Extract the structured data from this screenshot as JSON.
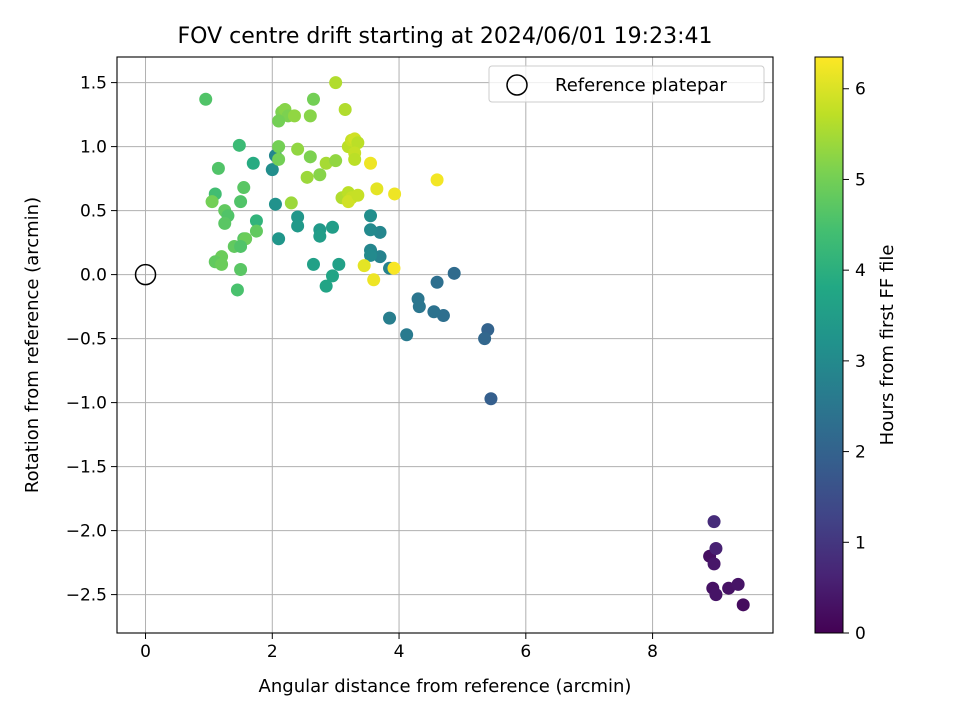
{
  "chart_data": {
    "type": "scatter",
    "title": "FOV centre drift starting at 2024/06/01 19:23:41",
    "xlabel": "Angular distance from reference (arcmin)",
    "ylabel": "Rotation from reference (arcmin)",
    "xlim": [
      -0.45,
      9.9
    ],
    "ylim": [
      -2.8,
      1.7
    ],
    "xticks": [
      0,
      2,
      4,
      6,
      8
    ],
    "xtick_labels": [
      "0",
      "2",
      "4",
      "6",
      "8"
    ],
    "yticks": [
      -2.5,
      -2.0,
      -1.5,
      -1.0,
      -0.5,
      0.0,
      0.5,
      1.0,
      1.5
    ],
    "ytick_labels": [
      "−2.5",
      "−2.0",
      "−1.5",
      "−1.0",
      "−0.5",
      "0.0",
      "0.5",
      "1.0",
      "1.5"
    ],
    "grid": true,
    "legend": {
      "placement": "top-right",
      "entries": [
        "Reference platepar"
      ]
    },
    "reference_point": {
      "x": 0.0,
      "y": 0.0
    },
    "colorbar": {
      "label": "Hours from first FF file",
      "colormap": "viridis",
      "range": [
        0,
        6.35
      ],
      "ticks": [
        0,
        1,
        2,
        3,
        4,
        5,
        6
      ],
      "tick_labels": [
        "0",
        "1",
        "2",
        "3",
        "4",
        "5",
        "6"
      ]
    },
    "points": [
      {
        "x": 8.9,
        "y": -2.2,
        "c": 0.25
      },
      {
        "x": 8.95,
        "y": -2.45,
        "c": 0.3
      },
      {
        "x": 9.0,
        "y": -2.5,
        "c": 0.35
      },
      {
        "x": 8.97,
        "y": -2.26,
        "c": 0.4
      },
      {
        "x": 9.2,
        "y": -2.45,
        "c": 0.3
      },
      {
        "x": 9.35,
        "y": -2.42,
        "c": 0.35
      },
      {
        "x": 9.43,
        "y": -2.58,
        "c": 0.2
      },
      {
        "x": 9.0,
        "y": -2.14,
        "c": 0.6
      },
      {
        "x": 8.97,
        "y": -1.93,
        "c": 0.8
      },
      {
        "x": 5.45,
        "y": -0.97,
        "c": 1.9
      },
      {
        "x": 5.4,
        "y": -0.43,
        "c": 2.0
      },
      {
        "x": 5.35,
        "y": -0.5,
        "c": 2.1
      },
      {
        "x": 4.87,
        "y": 0.01,
        "c": 2.2
      },
      {
        "x": 4.7,
        "y": -0.32,
        "c": 2.3
      },
      {
        "x": 4.6,
        "y": -0.06,
        "c": 2.3
      },
      {
        "x": 4.55,
        "y": -0.29,
        "c": 2.4
      },
      {
        "x": 4.3,
        "y": -0.19,
        "c": 2.5
      },
      {
        "x": 4.32,
        "y": -0.25,
        "c": 2.5
      },
      {
        "x": 4.12,
        "y": -0.47,
        "c": 2.6
      },
      {
        "x": 3.85,
        "y": -0.34,
        "c": 2.7
      },
      {
        "x": 3.85,
        "y": 0.05,
        "c": 2.8
      },
      {
        "x": 3.7,
        "y": 0.14,
        "c": 2.8
      },
      {
        "x": 3.7,
        "y": 0.33,
        "c": 2.9
      },
      {
        "x": 3.55,
        "y": 0.19,
        "c": 2.9
      },
      {
        "x": 3.55,
        "y": 0.15,
        "c": 3.0
      },
      {
        "x": 3.55,
        "y": 0.35,
        "c": 3.0
      },
      {
        "x": 3.55,
        "y": 0.46,
        "c": 3.1
      },
      {
        "x": 2.05,
        "y": 0.93,
        "c": 2.9
      },
      {
        "x": 2.0,
        "y": 0.82,
        "c": 3.1
      },
      {
        "x": 2.05,
        "y": 0.55,
        "c": 3.2
      },
      {
        "x": 2.1,
        "y": 0.28,
        "c": 3.3
      },
      {
        "x": 2.4,
        "y": 0.45,
        "c": 3.3
      },
      {
        "x": 2.4,
        "y": 0.38,
        "c": 3.4
      },
      {
        "x": 2.75,
        "y": 0.35,
        "c": 3.4
      },
      {
        "x": 2.75,
        "y": 0.3,
        "c": 3.5
      },
      {
        "x": 2.95,
        "y": 0.37,
        "c": 3.5
      },
      {
        "x": 2.65,
        "y": 0.08,
        "c": 3.6
      },
      {
        "x": 3.05,
        "y": 0.08,
        "c": 3.6
      },
      {
        "x": 2.95,
        "y": -0.01,
        "c": 3.7
      },
      {
        "x": 2.85,
        "y": -0.09,
        "c": 3.7
      },
      {
        "x": 1.7,
        "y": 0.87,
        "c": 3.9
      },
      {
        "x": 1.75,
        "y": 0.42,
        "c": 4.1
      },
      {
        "x": 1.48,
        "y": 1.01,
        "c": 4.3
      },
      {
        "x": 1.1,
        "y": 0.63,
        "c": 4.4
      },
      {
        "x": 0.95,
        "y": 1.37,
        "c": 4.6
      },
      {
        "x": 1.15,
        "y": 0.83,
        "c": 4.6
      },
      {
        "x": 1.55,
        "y": 0.68,
        "c": 4.7
      },
      {
        "x": 1.5,
        "y": 0.57,
        "c": 4.6
      },
      {
        "x": 1.25,
        "y": 0.5,
        "c": 4.8
      },
      {
        "x": 1.3,
        "y": 0.46,
        "c": 4.6
      },
      {
        "x": 1.25,
        "y": 0.4,
        "c": 4.7
      },
      {
        "x": 1.75,
        "y": 0.34,
        "c": 4.8
      },
      {
        "x": 1.55,
        "y": 0.28,
        "c": 4.7
      },
      {
        "x": 1.58,
        "y": 0.28,
        "c": 4.9
      },
      {
        "x": 1.4,
        "y": 0.22,
        "c": 4.8
      },
      {
        "x": 1.5,
        "y": 0.22,
        "c": 4.6
      },
      {
        "x": 1.2,
        "y": 0.14,
        "c": 4.9
      },
      {
        "x": 1.1,
        "y": 0.1,
        "c": 4.8
      },
      {
        "x": 1.2,
        "y": 0.08,
        "c": 4.9
      },
      {
        "x": 1.5,
        "y": 0.04,
        "c": 4.7
      },
      {
        "x": 1.45,
        "y": -0.12,
        "c": 4.5
      },
      {
        "x": 1.05,
        "y": 0.57,
        "c": 5.0
      },
      {
        "x": 2.1,
        "y": 1.0,
        "c": 5.0
      },
      {
        "x": 2.1,
        "y": 0.9,
        "c": 5.0
      },
      {
        "x": 2.15,
        "y": 1.27,
        "c": 5.1
      },
      {
        "x": 2.2,
        "y": 1.29,
        "c": 5.2
      },
      {
        "x": 2.25,
        "y": 1.24,
        "c": 5.1
      },
      {
        "x": 2.1,
        "y": 1.2,
        "c": 5.0
      },
      {
        "x": 2.35,
        "y": 1.24,
        "c": 5.3
      },
      {
        "x": 2.6,
        "y": 1.24,
        "c": 5.2
      },
      {
        "x": 2.65,
        "y": 1.37,
        "c": 5.0
      },
      {
        "x": 2.4,
        "y": 0.98,
        "c": 5.3
      },
      {
        "x": 2.6,
        "y": 0.92,
        "c": 5.1
      },
      {
        "x": 2.55,
        "y": 0.76,
        "c": 5.4
      },
      {
        "x": 2.75,
        "y": 0.78,
        "c": 5.2
      },
      {
        "x": 2.85,
        "y": 0.87,
        "c": 5.5
      },
      {
        "x": 3.0,
        "y": 0.89,
        "c": 5.3
      },
      {
        "x": 2.3,
        "y": 0.56,
        "c": 5.4
      },
      {
        "x": 3.0,
        "y": 1.5,
        "c": 5.6
      },
      {
        "x": 3.15,
        "y": 1.29,
        "c": 5.6
      },
      {
        "x": 3.2,
        "y": 1.0,
        "c": 5.7
      },
      {
        "x": 3.25,
        "y": 1.05,
        "c": 5.8
      },
      {
        "x": 3.3,
        "y": 1.06,
        "c": 5.9
      },
      {
        "x": 3.35,
        "y": 1.03,
        "c": 5.7
      },
      {
        "x": 3.3,
        "y": 0.95,
        "c": 5.8
      },
      {
        "x": 3.3,
        "y": 0.9,
        "c": 5.7
      },
      {
        "x": 3.1,
        "y": 0.6,
        "c": 5.6
      },
      {
        "x": 3.2,
        "y": 0.64,
        "c": 5.7
      },
      {
        "x": 3.25,
        "y": 0.6,
        "c": 5.8
      },
      {
        "x": 3.2,
        "y": 0.57,
        "c": 5.9
      },
      {
        "x": 3.35,
        "y": 0.62,
        "c": 5.8
      },
      {
        "x": 3.55,
        "y": 0.87,
        "c": 6.2
      },
      {
        "x": 3.65,
        "y": 0.67,
        "c": 6.1
      },
      {
        "x": 3.93,
        "y": 0.63,
        "c": 6.2
      },
      {
        "x": 4.6,
        "y": 0.74,
        "c": 6.25
      },
      {
        "x": 3.45,
        "y": 0.07,
        "c": 6.1
      },
      {
        "x": 3.92,
        "y": 0.05,
        "c": 6.3
      },
      {
        "x": 3.6,
        "y": -0.04,
        "c": 6.2
      }
    ]
  }
}
